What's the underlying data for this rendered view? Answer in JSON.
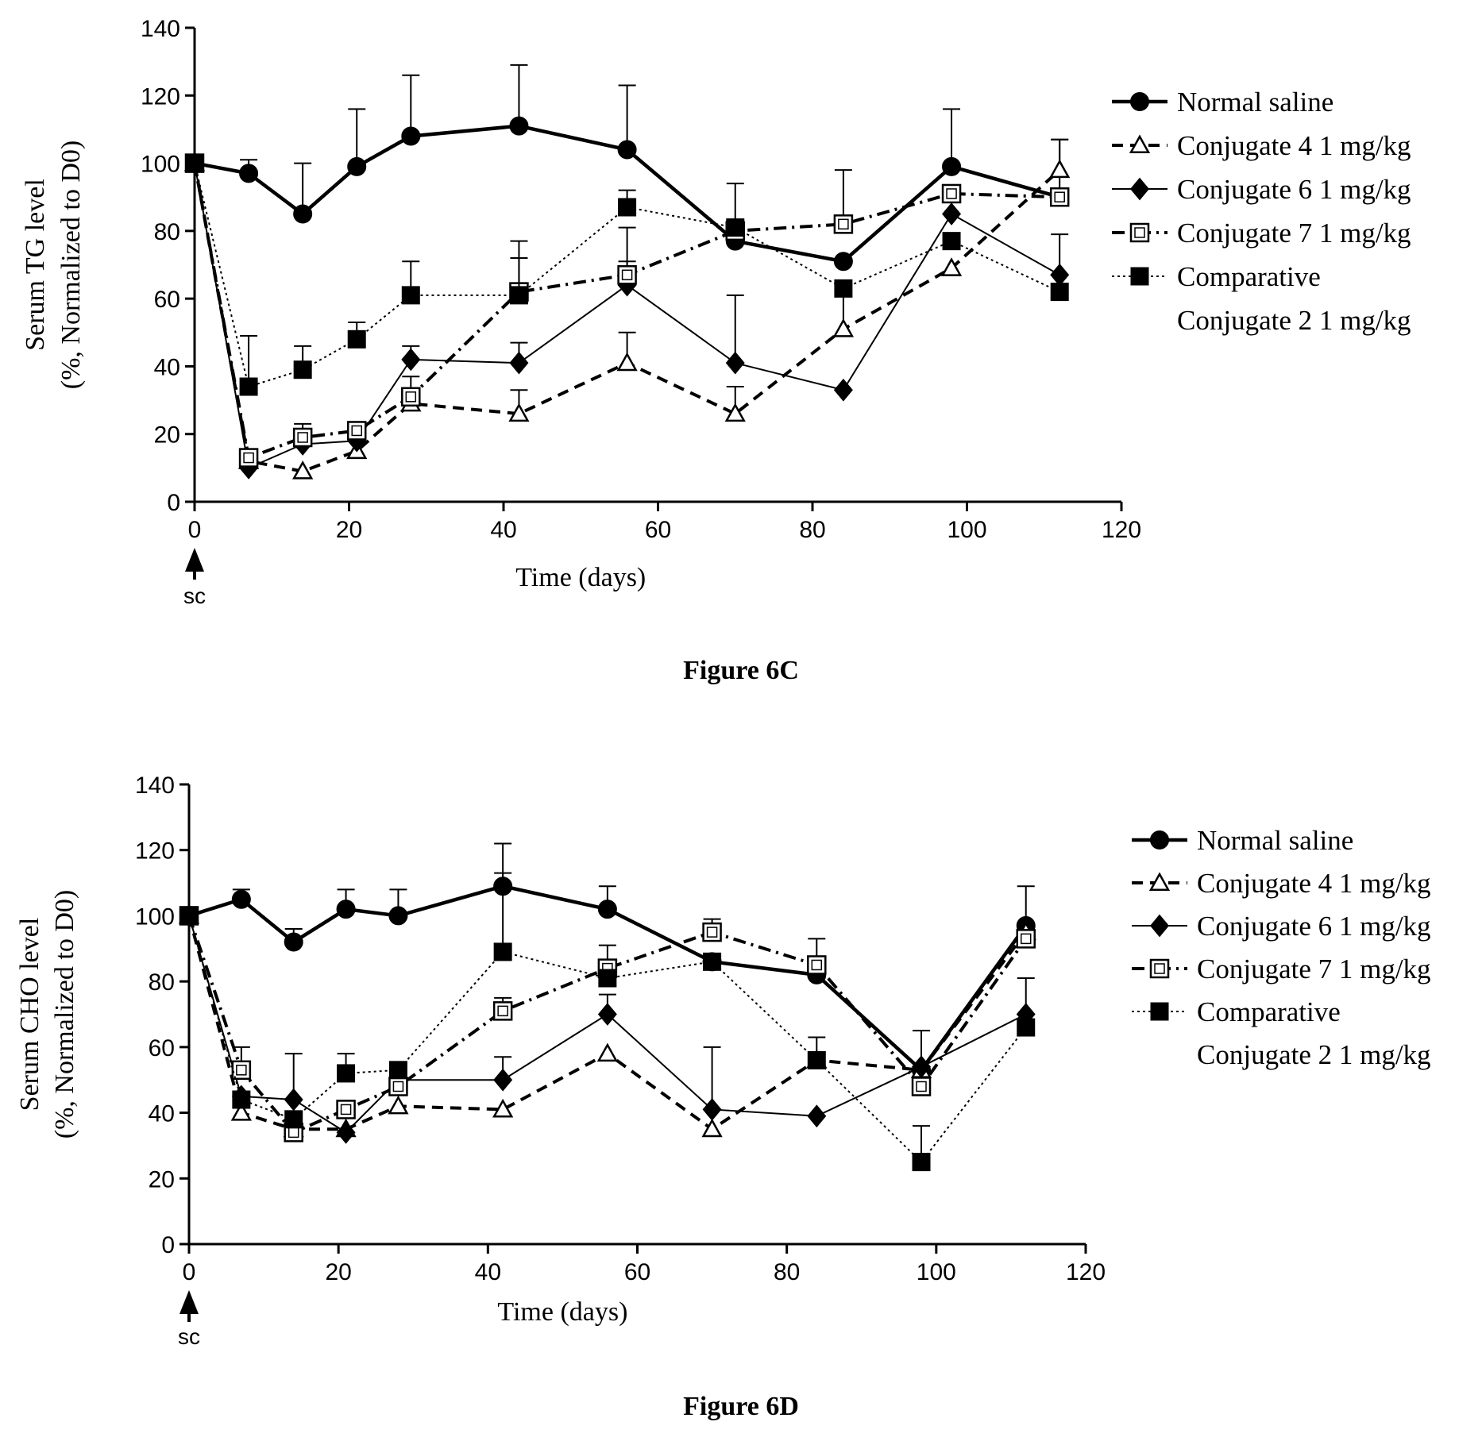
{
  "chart_data": [
    {
      "type": "line",
      "caption": "Figure 6C",
      "xlabel": "Time (days)",
      "ylabel": [
        "Serum TG level",
        "(%, Normalized to D0)"
      ],
      "xlim": [
        0,
        120
      ],
      "ylim": [
        0,
        140
      ],
      "xticks": [
        0,
        20,
        40,
        60,
        80,
        100,
        120
      ],
      "yticks": [
        0,
        20,
        40,
        60,
        80,
        100,
        120,
        140
      ],
      "annotation": "sc",
      "grid": false,
      "legend_position": "right",
      "x": [
        0,
        7,
        14,
        21,
        28,
        42,
        56,
        70,
        84,
        98,
        112
      ],
      "series": [
        {
          "name": "Normal saline",
          "marker": "circle",
          "style": "solid-bold",
          "color": "#000000",
          "values": [
            100,
            97,
            85,
            99,
            108,
            111,
            104,
            77,
            71,
            99,
            90
          ],
          "errors": [
            0,
            4,
            15,
            17,
            18,
            18,
            19,
            0,
            0,
            17,
            17
          ]
        },
        {
          "name": "Conjugate 4 1 mg/kg",
          "marker": "triangle-open",
          "style": "dashed",
          "color": "#000000",
          "values": [
            100,
            12,
            9,
            15,
            29,
            26,
            41,
            26,
            51,
            69,
            98
          ],
          "errors": [
            0,
            0,
            0,
            0,
            0,
            7,
            9,
            8,
            10,
            0,
            9
          ]
        },
        {
          "name": "Conjugate 6 1 mg/kg",
          "marker": "diamond",
          "style": "solid-thin",
          "color": "#000000",
          "values": [
            100,
            10,
            17,
            18,
            42,
            41,
            64,
            41,
            33,
            85,
            67
          ],
          "errors": [
            0,
            0,
            0,
            0,
            4,
            6,
            17,
            20,
            0,
            0,
            12
          ]
        },
        {
          "name": "Conjugate 7 1 mg/kg",
          "marker": "square-open",
          "style": "dashdot",
          "color": "#000000",
          "values": [
            100,
            13,
            19,
            21,
            31,
            62,
            67,
            80,
            82,
            91,
            90
          ],
          "errors": [
            0,
            0,
            4,
            2,
            6,
            15,
            4,
            14,
            16,
            0,
            0
          ]
        },
        {
          "name": "Comparative\nConjugate 2 1 mg/kg",
          "marker": "square-filled",
          "style": "dotted",
          "color": "#000000",
          "values": [
            100,
            34,
            39,
            48,
            61,
            61,
            87,
            81,
            63,
            77,
            62
          ],
          "errors": [
            0,
            15,
            7,
            5,
            10,
            11,
            5,
            0,
            0,
            0,
            0
          ]
        }
      ]
    },
    {
      "type": "line",
      "caption": "Figure 6D",
      "xlabel": "Time (days)",
      "ylabel": [
        "Serum CHO level",
        "(%, Normalized to D0)"
      ],
      "xlim": [
        0,
        120
      ],
      "ylim": [
        0,
        140
      ],
      "xticks": [
        0,
        20,
        40,
        60,
        80,
        100,
        120
      ],
      "yticks": [
        0,
        20,
        40,
        60,
        80,
        100,
        120,
        140
      ],
      "annotation": "sc",
      "grid": false,
      "legend_position": "right",
      "x": [
        0,
        7,
        14,
        21,
        28,
        42,
        56,
        70,
        84,
        98,
        112
      ],
      "series": [
        {
          "name": "Normal saline",
          "marker": "circle",
          "style": "solid-bold",
          "color": "#000000",
          "values": [
            100,
            105,
            92,
            102,
            100,
            109,
            102,
            86,
            82,
            53,
            97
          ],
          "errors": [
            0,
            3,
            4,
            6,
            8,
            13,
            7,
            0,
            0,
            0,
            12
          ]
        },
        {
          "name": "Conjugate 4 1 mg/kg",
          "marker": "triangle-open",
          "style": "dashed",
          "color": "#000000",
          "values": [
            100,
            40,
            35,
            35,
            42,
            41,
            58,
            35,
            56,
            53,
            95
          ],
          "errors": [
            0,
            0,
            0,
            0,
            0,
            0,
            0,
            0,
            0,
            0,
            0
          ]
        },
        {
          "name": "Conjugate 6 1 mg/kg",
          "marker": "diamond",
          "style": "solid-thin",
          "color": "#000000",
          "values": [
            100,
            45,
            44,
            34,
            50,
            50,
            70,
            41,
            39,
            54,
            70
          ],
          "errors": [
            0,
            0,
            14,
            0,
            0,
            7,
            6,
            19,
            0,
            0,
            11
          ]
        },
        {
          "name": "Conjugate 7 1 mg/kg",
          "marker": "square-open",
          "style": "dashdot",
          "color": "#000000",
          "values": [
            100,
            53,
            34,
            41,
            48,
            71,
            84,
            95,
            85,
            48,
            93
          ],
          "errors": [
            0,
            7,
            0,
            0,
            0,
            4,
            7,
            4,
            8,
            17,
            0
          ]
        },
        {
          "name": "Comparative\nConjugate 2 1 mg/kg",
          "marker": "square-filled",
          "style": "dotted",
          "color": "#000000",
          "values": [
            100,
            44,
            38,
            52,
            53,
            89,
            81,
            86,
            56,
            25,
            66
          ],
          "errors": [
            0,
            0,
            0,
            6,
            0,
            24,
            0,
            0,
            7,
            11,
            0
          ]
        }
      ]
    }
  ]
}
